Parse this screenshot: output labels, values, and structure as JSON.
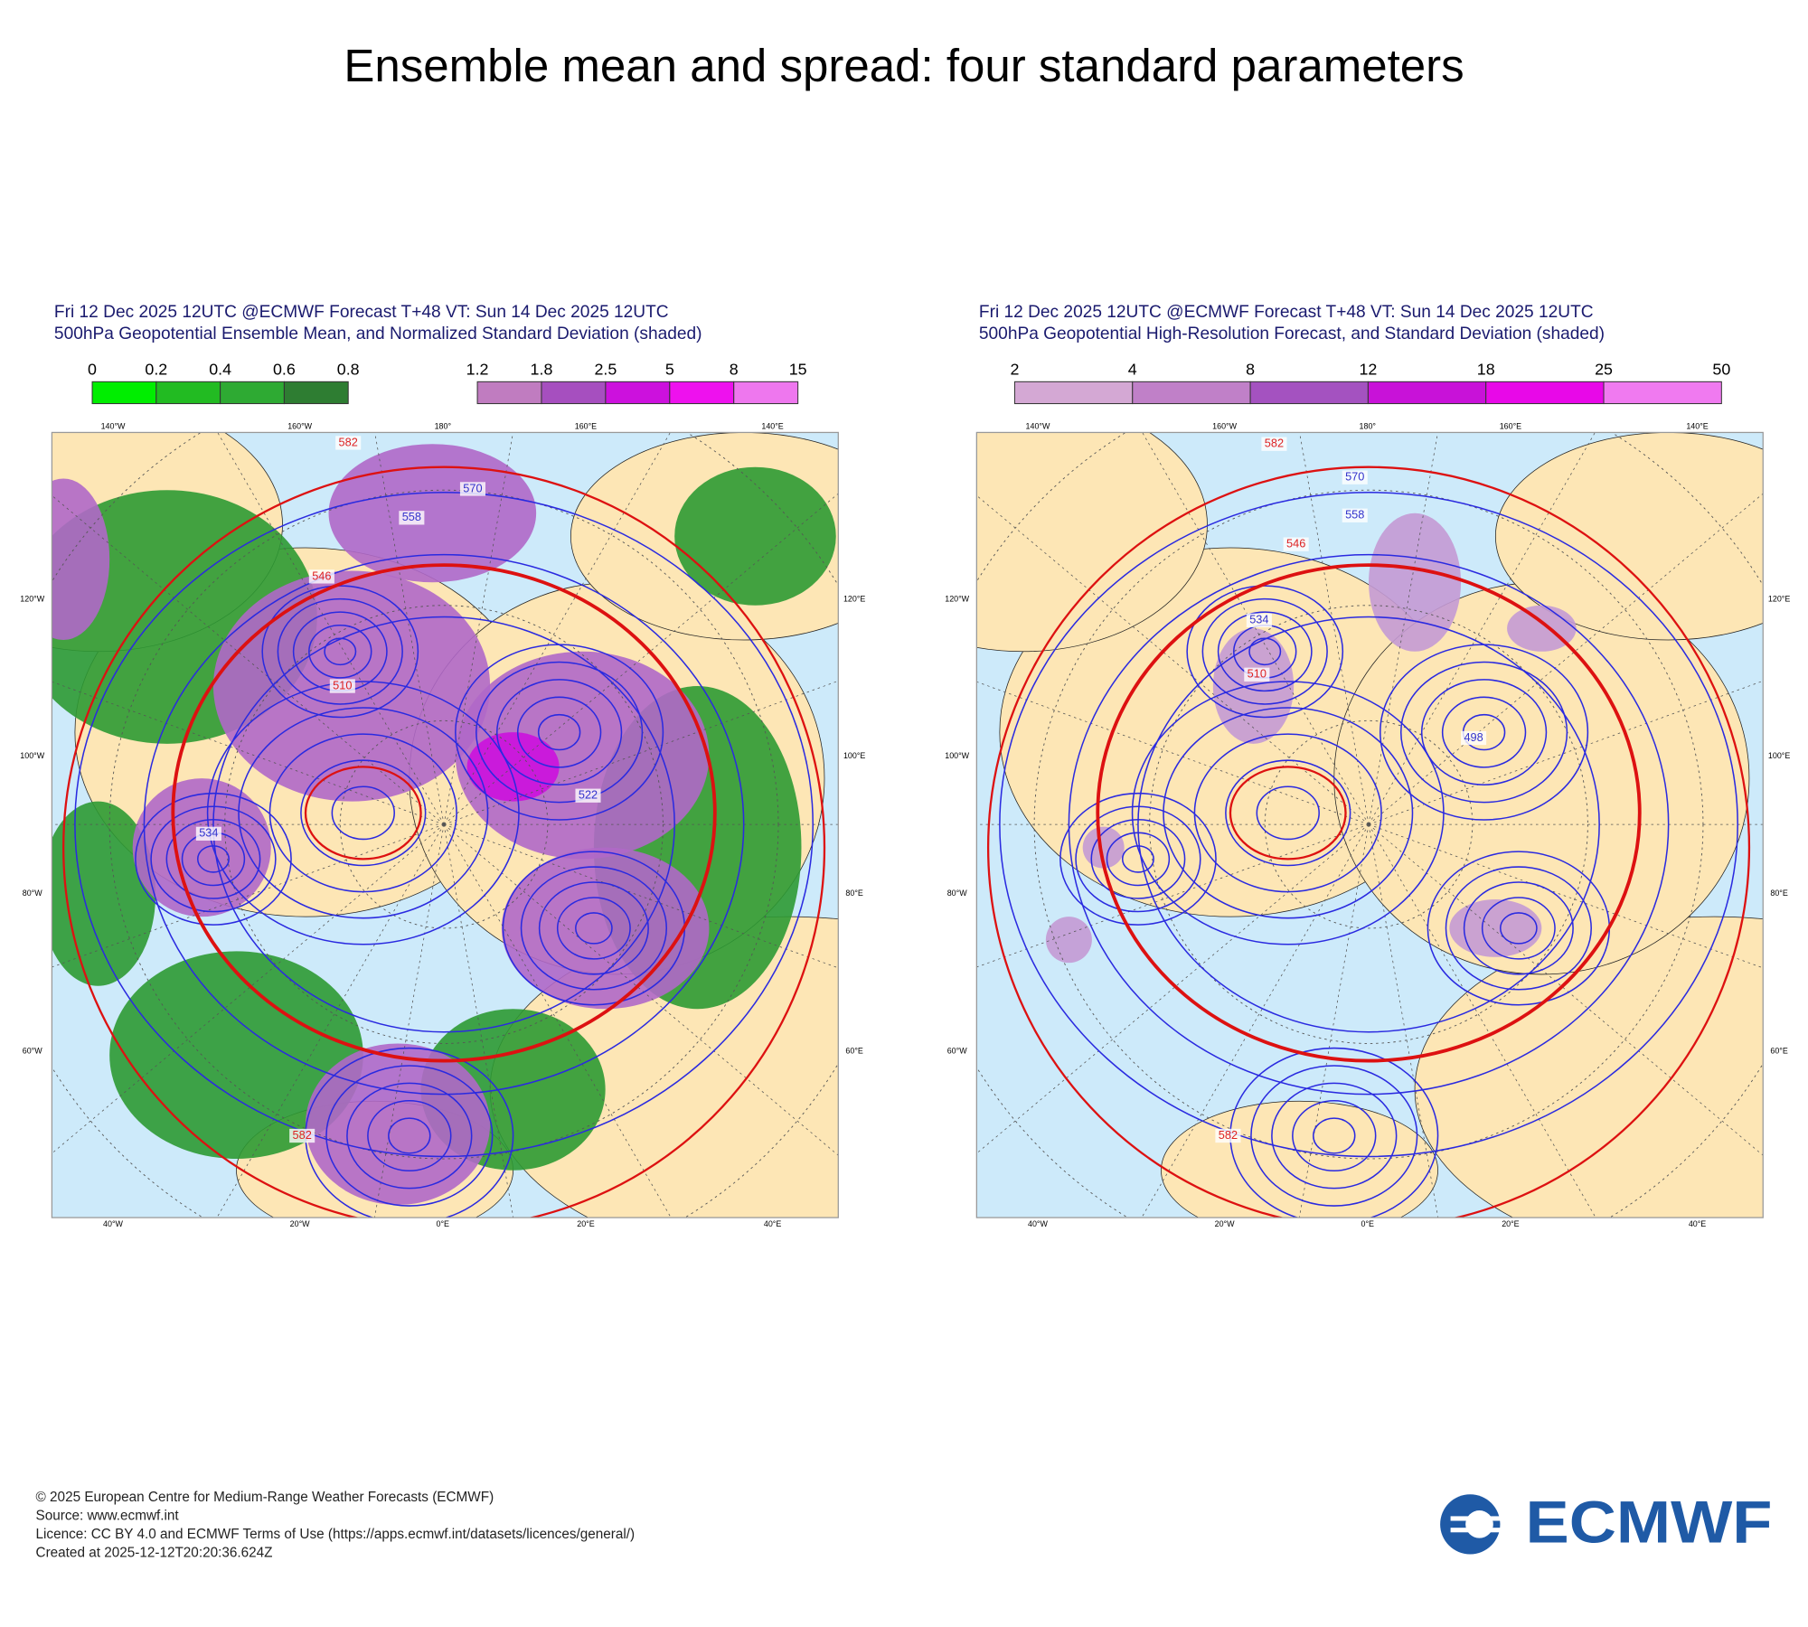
{
  "title": "Ensemble mean and spread: four standard parameters",
  "panels": [
    {
      "header": [
        "Fri 12 Dec 2025 12UTC @ECMWF Forecast T+48 VT: Sun 14 Dec 2025 12UTC",
        "500hPa Geopotential Ensemble Mean, and Normalized Standard Deviation (shaded)"
      ],
      "colorbars": [
        {
          "ticks": [
            "0",
            "0.2",
            "0.4",
            "0.6",
            "0.8"
          ],
          "colors": [
            "#00ee00",
            "#22bb22",
            "#2eaa33",
            "#2e7d32"
          ]
        },
        {
          "ticks": [
            "1.2",
            "1.8",
            "2.5",
            "5",
            "8",
            "15"
          ],
          "colors": [
            "#c07cc0",
            "#a64fbf",
            "#cc11dd",
            "#ee11ee",
            "#ee77ee"
          ]
        }
      ],
      "lon_top": [
        "140°W",
        "160°W",
        "180°",
        "160°E",
        "140°E"
      ],
      "lon_left": [
        "120°W",
        "100°W",
        "80°W",
        "60°W"
      ],
      "lon_right": [
        "120°E",
        "100°E",
        "80°E",
        "60°E"
      ],
      "lon_bottom": [
        "40°W",
        "20°W",
        "0°E",
        "20°E",
        "40°E"
      ],
      "contour_labels": [
        {
          "text": "582",
          "color": "#dd2222"
        },
        {
          "text": "570",
          "color": "#3333cc"
        },
        {
          "text": "558",
          "color": "#3333cc"
        },
        {
          "text": "546",
          "color": "#dd2222"
        },
        {
          "text": "510",
          "color": "#dd2222"
        },
        {
          "text": "534",
          "color": "#3333cc"
        },
        {
          "text": "522",
          "color": "#3333cc"
        },
        {
          "text": "582",
          "color": "#dd2222"
        }
      ]
    },
    {
      "header": [
        "Fri 12 Dec 2025 12UTC @ECMWF Forecast T+48 VT: Sun 14 Dec 2025 12UTC",
        "500hPa Geopotential High-Resolution Forecast, and Standard Deviation (shaded)"
      ],
      "colorbars": [
        {
          "ticks": [
            "2",
            "4",
            "8",
            "12",
            "18",
            "25",
            "50"
          ],
          "colors": [
            "#d4a8d4",
            "#c080c8",
            "#a452c0",
            "#c812d8",
            "#e808e8",
            "#f07af0"
          ]
        }
      ],
      "lon_top": [
        "140°W",
        "160°W",
        "180°",
        "160°E",
        "140°E"
      ],
      "lon_left": [
        "120°W",
        "100°W",
        "80°W",
        "60°W"
      ],
      "lon_right": [
        "120°E",
        "100°E",
        "80°E",
        "60°E"
      ],
      "lon_bottom": [
        "40°W",
        "20°W",
        "0°E",
        "20°E",
        "40°E"
      ],
      "contour_labels": [
        {
          "text": "582",
          "color": "#dd2222"
        },
        {
          "text": "570",
          "color": "#3333cc"
        },
        {
          "text": "558",
          "color": "#3333cc"
        },
        {
          "text": "546",
          "color": "#dd2222"
        },
        {
          "text": "510",
          "color": "#dd2222"
        },
        {
          "text": "534",
          "color": "#3333cc"
        },
        {
          "text": "498",
          "color": "#3333cc"
        },
        {
          "text": "582",
          "color": "#dd2222"
        }
      ]
    }
  ],
  "footer": [
    "© 2025 European Centre for Medium-Range Weather Forecasts (ECMWF)",
    "Source: www.ecmwf.int",
    "Licence: CC BY 4.0 and ECMWF Terms of Use (https://apps.ecmwf.int/datasets/licences/general/)",
    "Created at 2025-12-12T20:20:36.624Z"
  ],
  "logo": "ECMWF"
}
